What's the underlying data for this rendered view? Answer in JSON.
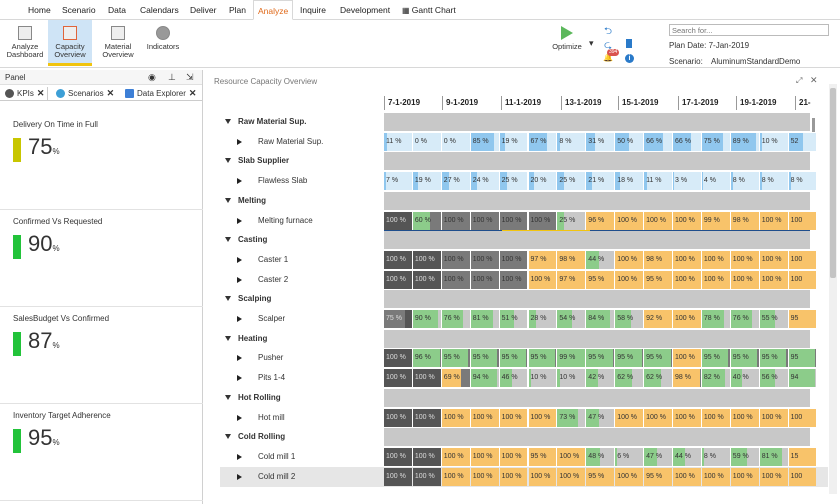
{
  "menu": [
    "Home",
    "Scenario",
    "Data",
    "Calendars",
    "Deliver",
    "Plan",
    "Analyze",
    "Inquire",
    "Development",
    "Gantt Chart"
  ],
  "ribbon": {
    "buttons": [
      "Analyze Dashboard",
      "Capacity Overview",
      "Material Overview",
      "Indicators"
    ],
    "optimize": "Optimize",
    "badge": "394",
    "search_placeholder": "Search for...",
    "plan_date": "Plan Date: 7-Jan-2019",
    "scenario_label": "Scenario:",
    "scenario_name": "AluminumStandardDemo"
  },
  "panel": {
    "title": "Panel",
    "tabs": [
      "KPIs",
      "Scenarios",
      "Data Explorer"
    ],
    "kpis": [
      {
        "title": "Delivery On Time in Full",
        "value": "75",
        "unit": "%",
        "color": "#c8c600"
      },
      {
        "title": "Confirmed Vs Requested",
        "value": "90",
        "unit": "%",
        "color": "#22c33a"
      },
      {
        "title": "SalesBudget Vs Confirmed",
        "value": "87",
        "unit": "%",
        "color": "#22c33a"
      },
      {
        "title": "Inventory Target Adherence",
        "value": "95",
        "unit": "%",
        "color": "#22c33a"
      }
    ]
  },
  "main": {
    "title": "Resource Capacity Overview",
    "dates": [
      "7-1-2019",
      "9-1-2019",
      "11-1-2019",
      "13-1-2019",
      "15-1-2019",
      "17-1-2019",
      "19-1-2019",
      "21-"
    ],
    "rows": [
      {
        "type": "group",
        "label": "Raw Material Sup."
      },
      {
        "type": "res",
        "label": "Raw Material Sup.",
        "cells": [
          "11 %",
          "0 %",
          "0 %",
          "85 %",
          "19 %",
          "67 %",
          "8 %",
          "31 %",
          "50 %",
          "66 %",
          "66 %",
          "75 %",
          "89 %",
          "10 %",
          "52"
        ],
        "kind": "blue"
      },
      {
        "type": "group",
        "label": "Slab Supplier"
      },
      {
        "type": "res",
        "label": "Flawless Slab",
        "cells": [
          "7 %",
          "19 %",
          "27 %",
          "24 %",
          "25 %",
          "20 %",
          "25 %",
          "21 %",
          "18 %",
          "11 %",
          "3 %",
          "4 %",
          "8 %",
          "8 %",
          "8 %"
        ],
        "kind": "blue"
      },
      {
        "type": "group",
        "label": "Melting"
      },
      {
        "type": "res",
        "label": "Melting furnace",
        "cells": [
          "100 %",
          "60 %",
          "100 %",
          "100 %",
          "100 %",
          "100 %",
          "25 %",
          "96 %",
          "100 %",
          "100 %",
          "100 %",
          "99 %",
          "98 %",
          "100 %",
          "100"
        ],
        "kind": "melt"
      },
      {
        "type": "group",
        "label": "Casting"
      },
      {
        "type": "res",
        "label": "Caster 1",
        "cells": [
          "100 %",
          "100 %",
          "100 %",
          "100 %",
          "100 %",
          "97 %",
          "98 %",
          "44 %",
          "100 %",
          "98 %",
          "100 %",
          "100 %",
          "100 %",
          "100 %",
          "100"
        ],
        "kind": "cast1"
      },
      {
        "type": "res",
        "label": "Caster 2",
        "cells": [
          "100 %",
          "100 %",
          "100 %",
          "100 %",
          "100 %",
          "100 %",
          "97 %",
          "95 %",
          "100 %",
          "95 %",
          "100 %",
          "100 %",
          "100 %",
          "100 %",
          "100"
        ],
        "kind": "cast2"
      },
      {
        "type": "group",
        "label": "Scalping"
      },
      {
        "type": "res",
        "label": "Scalper",
        "cells": [
          "75 %",
          "90 %",
          "76 %",
          "81 %",
          "51 %",
          "28 %",
          "54 %",
          "84 %",
          "58 %",
          "92 %",
          "100 %",
          "78 %",
          "76 %",
          "55 %",
          "95"
        ],
        "kind": "scalp"
      },
      {
        "type": "group",
        "label": "Heating"
      },
      {
        "type": "res",
        "label": "Pusher",
        "cells": [
          "100 %",
          "96 %",
          "95 %",
          "95 %",
          "95 %",
          "95 %",
          "99 %",
          "95 %",
          "95 %",
          "95 %",
          "100 %",
          "95 %",
          "95 %",
          "95 %",
          "95"
        ],
        "kind": "push"
      },
      {
        "type": "res",
        "label": "Pits 1-4",
        "cells": [
          "100 %",
          "100 %",
          "69 %",
          "94 %",
          "46 %",
          "10 %",
          "10 %",
          "42 %",
          "62 %",
          "62 %",
          "98 %",
          "82 %",
          "40 %",
          "56 %",
          "94"
        ],
        "kind": "pits"
      },
      {
        "type": "group",
        "label": "Hot Rolling"
      },
      {
        "type": "res",
        "label": "Hot mill",
        "cells": [
          "100 %",
          "100 %",
          "100 %",
          "100 %",
          "100 %",
          "100 %",
          "73 %",
          "47 %",
          "100 %",
          "100 %",
          "100 %",
          "100 %",
          "100 %",
          "100 %",
          "100"
        ],
        "kind": "hot"
      },
      {
        "type": "group",
        "label": "Cold Rolling"
      },
      {
        "type": "res",
        "label": "Cold mill 1",
        "cells": [
          "100 %",
          "100 %",
          "100 %",
          "100 %",
          "100 %",
          "95 %",
          "100 %",
          "48 %",
          "6 %",
          "47 %",
          "44 %",
          "8 %",
          "59 %",
          "81 %",
          "15"
        ],
        "kind": "cold1"
      },
      {
        "type": "res",
        "label": "Cold mill 2",
        "cells": [
          "100 %",
          "100 %",
          "100 %",
          "100 %",
          "100 %",
          "100 %",
          "100 %",
          "95 %",
          "100 %",
          "95 %",
          "100 %",
          "100 %",
          "100 %",
          "100 %",
          "100"
        ],
        "kind": "cold2",
        "selected": true
      }
    ]
  }
}
